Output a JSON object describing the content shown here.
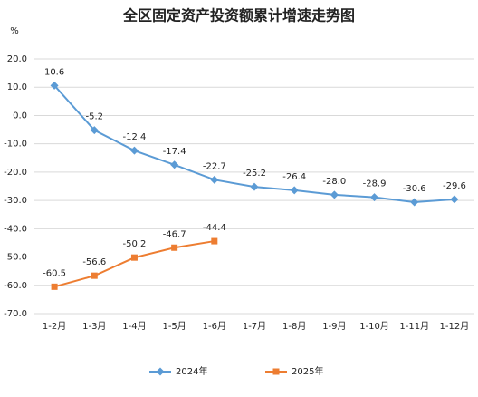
{
  "chart_data": {
    "type": "line",
    "title": "全区固定资产投资额累计增速走势图",
    "y_label": "%",
    "categories": [
      "1-2月",
      "1-3月",
      "1-4月",
      "1-5月",
      "1-6月",
      "1-7月",
      "1-8月",
      "1-9月",
      "1-10月",
      "1-11月",
      "1-12月"
    ],
    "series": [
      {
        "name": "2024年",
        "color": "#5b9bd5",
        "marker": "diamond",
        "values": [
          10.6,
          -5.2,
          -12.4,
          -17.4,
          -22.7,
          -25.2,
          -26.4,
          -28.0,
          -28.9,
          -30.6,
          -29.6
        ],
        "value_labels": [
          "10.6",
          "-5.2",
          "-12.4",
          "-17.4",
          "-22.7",
          "-25.2",
          "-26.4",
          "-28.0",
          "-28.9",
          "-30.6",
          "-29.6"
        ]
      },
      {
        "name": "2025年",
        "color": "#ed7d31",
        "marker": "square",
        "values": [
          -60.5,
          -56.6,
          -50.2,
          -46.7,
          -44.4,
          null,
          null,
          null,
          null,
          null,
          null
        ],
        "value_labels": [
          "-60.5",
          "-56.6",
          "-50.2",
          "-46.7",
          "-44.4",
          null,
          null,
          null,
          null,
          null,
          null
        ]
      }
    ],
    "ylim": [
      -70,
      20
    ],
    "yticks": [
      {
        "value": 20,
        "label": "20.0"
      },
      {
        "value": 10,
        "label": "10.0"
      },
      {
        "value": 0,
        "label": "0.0"
      },
      {
        "value": -10,
        "label": "-10.0"
      },
      {
        "value": -20,
        "label": "-20.0"
      },
      {
        "value": -30,
        "label": "-30.0"
      },
      {
        "value": -40,
        "label": "-40.0"
      },
      {
        "value": -50,
        "label": "-50.0"
      },
      {
        "value": -60,
        "label": "-60.0"
      },
      {
        "value": -70,
        "label": "-70.0"
      }
    ],
    "grid": true,
    "legend": "bottom"
  }
}
